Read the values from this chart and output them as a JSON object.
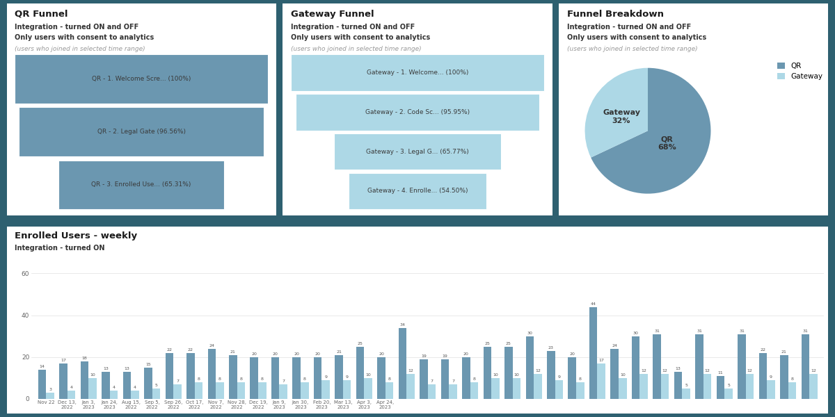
{
  "background_color": "#2e6070",
  "panel_color": "#ffffff",
  "qr_funnel": {
    "title": "QR Funnel",
    "subtitle1": "Integration - turned ON and OFF",
    "subtitle2": "Only users with consent to analytics",
    "subtitle3": "(users who joined in selected time range)",
    "steps": [
      {
        "label": "QR - 1. Welcome Scre... (100%)",
        "pct": 1.0
      },
      {
        "label": "QR - 2. Legal Gate (96.56%)",
        "pct": 0.9656
      },
      {
        "label": "QR - 3. Enrolled Use... (65.31%)",
        "pct": 0.6531
      }
    ],
    "color": "#6b97b0"
  },
  "gateway_funnel": {
    "title": "Gateway Funnel",
    "subtitle1": "Integration - turned ON and OFF",
    "subtitle2": "Only users with consent to analytics",
    "subtitle3": "(users who joined in selected time range)",
    "steps": [
      {
        "label": "Gateway - 1. Welcome... (100%)",
        "pct": 1.0
      },
      {
        "label": "Gateway - 2. Code Sc... (95.95%)",
        "pct": 0.9595
      },
      {
        "label": "Gateway - 3. Legal G... (65.77%)",
        "pct": 0.6577
      },
      {
        "label": "Gateway - 4. Enrolle... (54.50%)",
        "pct": 0.545
      }
    ],
    "color": "#add8e6"
  },
  "funnel_breakdown": {
    "title": "Funnel Breakdown",
    "subtitle1": "Integration - turned ON and OFF",
    "subtitle2": "Only users with consent to analytics",
    "subtitle3": "(users who joined in selected time range)",
    "labels": [
      "QR",
      "Gateway"
    ],
    "values": [
      68,
      32
    ],
    "colors": [
      "#6b97b0",
      "#add8e6"
    ]
  },
  "bar_chart": {
    "title": "Enrolled Users - weekly",
    "subtitle": "Integration - turned ON",
    "ylim": [
      0,
      60
    ],
    "yticks": [
      0,
      20,
      40,
      60
    ],
    "bar_color_qr": "#6b97b0",
    "bar_color_gateway": "#add8e6",
    "qr_values": [
      14,
      17,
      18,
      13,
      13,
      15,
      22,
      22,
      24,
      21,
      20,
      20,
      20,
      20,
      21,
      25,
      20,
      34,
      19,
      19,
      20,
      25,
      25,
      30,
      23,
      20,
      44,
      24,
      30,
      31,
      13,
      31,
      11,
      31,
      22,
      21,
      31
    ],
    "gateway_values": [
      3,
      4,
      10,
      4,
      4,
      5,
      7,
      8,
      8,
      8,
      8,
      7,
      8,
      9,
      9,
      10,
      8,
      12,
      7,
      7,
      8,
      10,
      10,
      12,
      9,
      8,
      17,
      10,
      12,
      12,
      5,
      12,
      5,
      12,
      9,
      8,
      12
    ],
    "x_labels": [
      "Nov 22",
      "Dec 13,\n2022",
      "Jan 3,\n2023",
      "Jan 24,\n2023",
      "Aug 15,\n2022",
      "Sep 5,\n2022",
      "Sep 26,\n2022",
      "Oct 17,\n2022",
      "Nov 7,\n2022",
      "Nov 28,\n2022",
      "Dec 19,\n2022",
      "Jan 9,\n2023",
      "Jan 30,\n2023",
      "Feb 20,\n2023",
      "Mar 13,\n2023",
      "Apr 3,\n2023",
      "Apr 24,\n2023",
      "",
      "",
      "",
      "",
      "",
      "",
      "",
      "",
      "",
      "",
      "",
      "",
      "",
      "",
      "",
      "",
      "",
      "",
      "",
      ""
    ]
  }
}
